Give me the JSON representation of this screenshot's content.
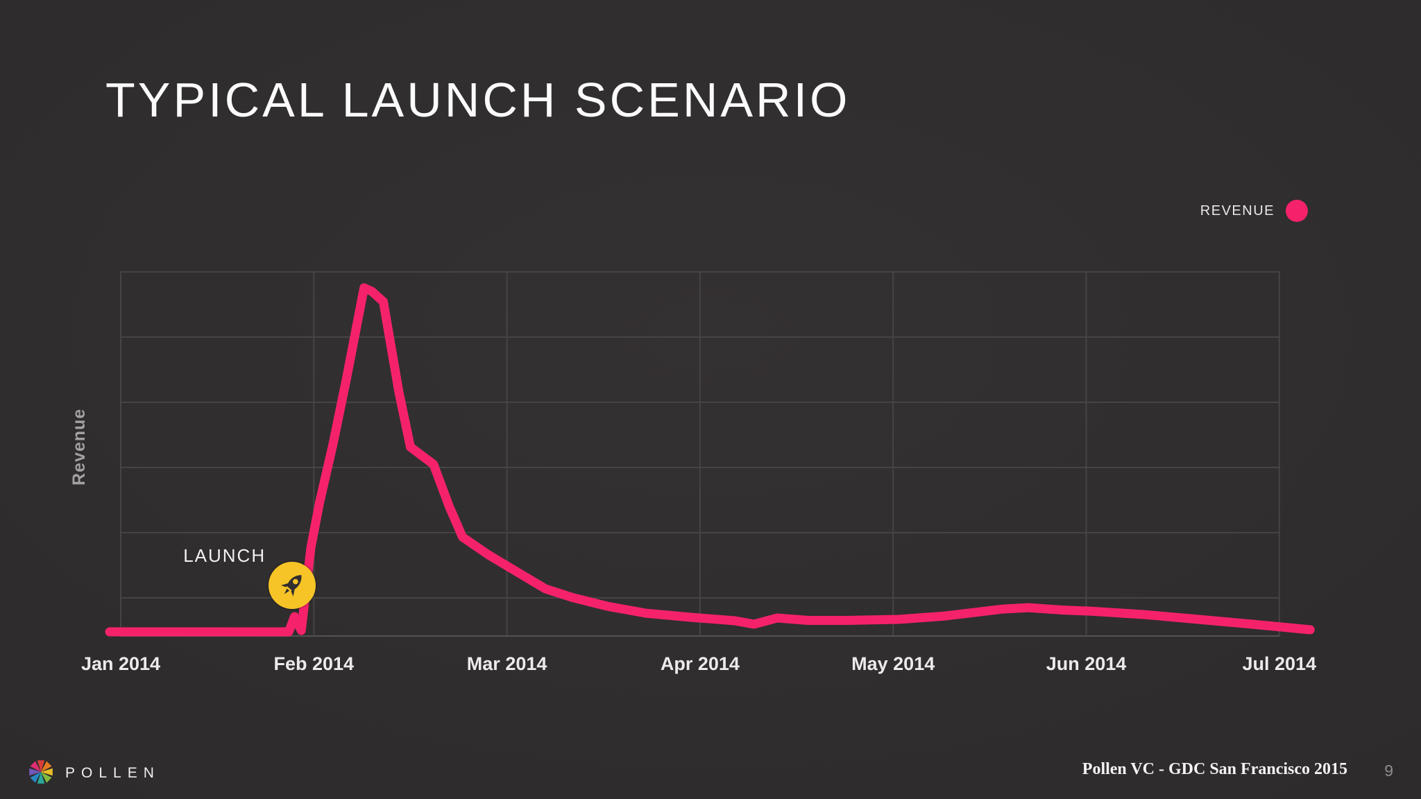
{
  "slide": {
    "title": "TYPICAL LAUNCH SCENARIO",
    "footer": {
      "brand": "POLLEN",
      "credit": "Pollen VC - GDC San Francisco 2015",
      "page_number": "9",
      "logo_petal_colors": [
        "#E8413C",
        "#F58220",
        "#F9C926",
        "#8BC53F",
        "#2BB3A3",
        "#2A8FD0",
        "#7A5CC4",
        "#EF2E7A"
      ]
    }
  },
  "legend": {
    "label": "REVENUE",
    "color": "#F5226B"
  },
  "colors": {
    "background": "#2E2C2C",
    "accent_pink": "#F5226B",
    "marker_yellow": "#F6C426",
    "gridline": "#474445"
  },
  "chart_data": {
    "type": "line",
    "title": "TYPICAL LAUNCH SCENARIO",
    "xlabel": "",
    "ylabel": "Revenue",
    "x_unit": "months_since_jan_2014",
    "x_tick_labels": [
      "Jan 2014",
      "Feb 2014",
      "Mar 2014",
      "Apr 2014",
      "May 2014",
      "Jun 2014",
      "Jul 2014"
    ],
    "ylim": [
      0,
      100
    ],
    "y_tick_labels_shown": false,
    "grid": true,
    "legend_position": "top-right",
    "series": [
      {
        "name": "REVENUE",
        "color": "#F5226B",
        "points": [
          [
            -0.057,
            0.6
          ],
          [
            0.87,
            0.6
          ],
          [
            0.9,
            5
          ],
          [
            0.935,
            1
          ],
          [
            0.985,
            25
          ],
          [
            1.03,
            38
          ],
          [
            1.1,
            55
          ],
          [
            1.17,
            74
          ],
          [
            1.26,
            100
          ],
          [
            1.3,
            99
          ],
          [
            1.36,
            96
          ],
          [
            1.44,
            70
          ],
          [
            1.5,
            54
          ],
          [
            1.62,
            49
          ],
          [
            1.7,
            37
          ],
          [
            1.77,
            28
          ],
          [
            1.9,
            23
          ],
          [
            2.05,
            18
          ],
          [
            2.2,
            13
          ],
          [
            2.34,
            10.5
          ],
          [
            2.52,
            8
          ],
          [
            2.72,
            6
          ],
          [
            2.95,
            4.8
          ],
          [
            3.18,
            3.8
          ],
          [
            3.28,
            2.8
          ],
          [
            3.4,
            4.6
          ],
          [
            3.56,
            3.9
          ],
          [
            3.76,
            3.9
          ],
          [
            4.03,
            4.2
          ],
          [
            4.27,
            5.2
          ],
          [
            4.57,
            7.2
          ],
          [
            4.7,
            7.6
          ],
          [
            4.88,
            6.9
          ],
          [
            5.02,
            6.6
          ],
          [
            5.3,
            5.6
          ],
          [
            5.58,
            4.2
          ],
          [
            5.86,
            2.8
          ],
          [
            6.16,
            1.2
          ]
        ]
      }
    ],
    "annotations": [
      {
        "label": "LAUNCH",
        "icon": "rocket-icon",
        "month": 0.888,
        "value": 14
      }
    ]
  }
}
